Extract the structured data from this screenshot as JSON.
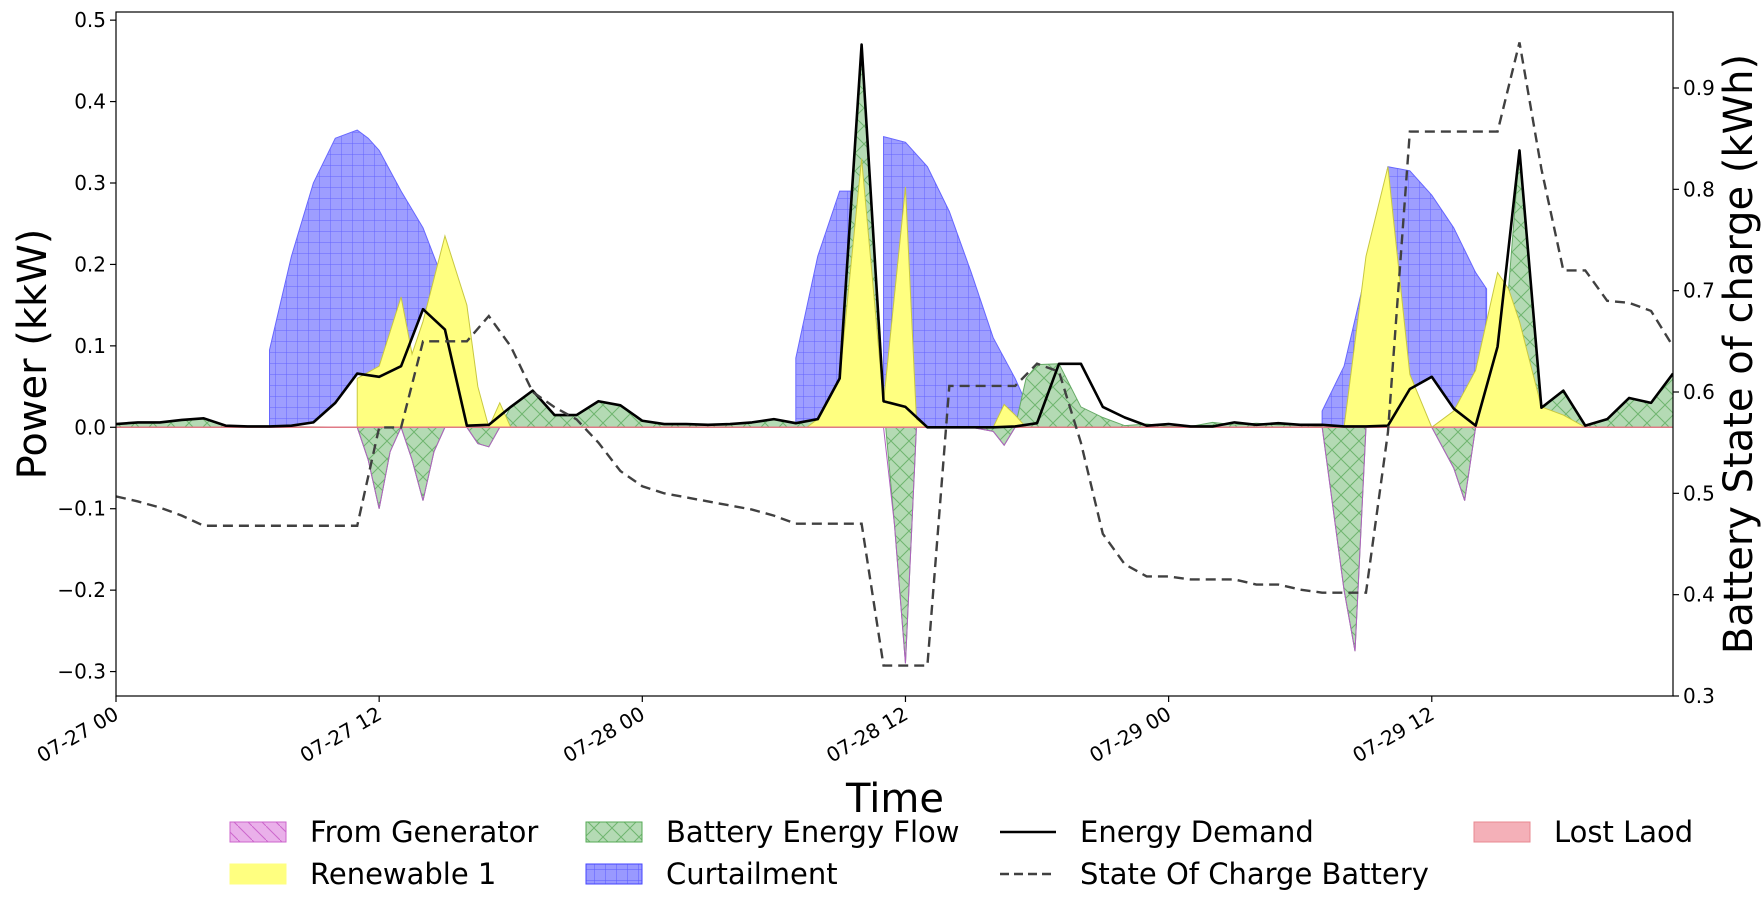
{
  "chart_data": {
    "type": "area",
    "xlabel": "Time",
    "ylabel": "Power (kkW)",
    "ylabel_right": "Battery State of charge (kWh)",
    "x_unit": "hour offset from 07-27 00:00",
    "xlim": [
      0,
      71
    ],
    "ylim": [
      -0.33,
      0.51
    ],
    "ylim_right": [
      0.3,
      0.975
    ],
    "x_ticks": [
      {
        "x": 0,
        "label": "07-27 00"
      },
      {
        "x": 12,
        "label": "07-27 12"
      },
      {
        "x": 24,
        "label": "07-28 00"
      },
      {
        "x": 36,
        "label": "07-28 12"
      },
      {
        "x": 48,
        "label": "07-29 00"
      },
      {
        "x": 60,
        "label": "07-29 12"
      }
    ],
    "y_ticks": [
      -0.3,
      -0.2,
      -0.1,
      0.0,
      0.1,
      0.2,
      0.3,
      0.4,
      0.5
    ],
    "y_tick_labels": [
      "−0.3",
      "−0.2",
      "−0.1",
      "0.0",
      "0.1",
      "0.2",
      "0.3",
      "0.4",
      "0.5"
    ],
    "y_ticks_right": [
      0.3,
      0.4,
      0.5,
      0.6,
      0.7,
      0.8,
      0.9
    ],
    "y_tick_labels_right": [
      "0.3",
      "0.4",
      "0.5",
      "0.6",
      "0.7",
      "0.8",
      "0.9"
    ],
    "legend_position": "bottom",
    "series": [
      {
        "name": "Curtailment",
        "style": "hatch-grid",
        "color": "#0000ff",
        "stacked_on": "Energy Demand",
        "x": [
          7,
          8,
          9,
          10,
          11,
          11.5,
          12,
          13,
          14,
          15,
          16,
          16.5
        ],
        "values": [
          0.095,
          0.21,
          0.3,
          0.355,
          0.365,
          0.355,
          0.34,
          0.29,
          0.245,
          0.175,
          0.07,
          0.02
        ],
        "x2": [
          31,
          32,
          33,
          33.5
        ],
        "values2": [
          0.085,
          0.21,
          0.29,
          0.29
        ],
        "x3": [
          35,
          36,
          37,
          38,
          39,
          40,
          41,
          41.5
        ],
        "values3": [
          0.357,
          0.35,
          0.32,
          0.265,
          0.19,
          0.11,
          0.06,
          0.03
        ],
        "x4": [
          55,
          56,
          57,
          58,
          59,
          60,
          61,
          62,
          62.5
        ],
        "values4": [
          0.02,
          0.075,
          0.19,
          0.32,
          0.315,
          0.285,
          0.245,
          0.19,
          0.17
        ]
      },
      {
        "name": "Renewable 1",
        "style": "fill",
        "color": "#ffff80",
        "x": [
          11,
          12,
          13,
          13.5,
          14,
          15,
          16,
          16.5,
          17,
          17.5,
          18,
          31.5,
          32,
          33,
          34,
          35,
          36,
          36.5,
          37,
          38,
          40,
          40.5,
          41,
          41.5,
          42,
          56,
          57,
          58,
          59,
          60,
          61,
          62,
          63,
          63.5,
          64,
          65,
          66,
          67,
          71
        ],
        "values": [
          0.06,
          0.075,
          0.16,
          0.09,
          0.13,
          0.235,
          0.15,
          0.05,
          0.0,
          0.03,
          0.0,
          0.0,
          0.01,
          0.06,
          0.33,
          0.03,
          0.295,
          0.01,
          0.0,
          0.0,
          0.0,
          0.028,
          0.015,
          0.0,
          0.0,
          0.0,
          0.21,
          0.32,
          0.065,
          0.0,
          0.02,
          0.07,
          0.19,
          0.17,
          0.13,
          0.025,
          0.015,
          0.0,
          0.0
        ]
      },
      {
        "name": "Battery Energy Flow",
        "style": "hatch-x",
        "color": "#66bb66",
        "x": [
          0,
          1,
          2,
          3,
          4,
          5,
          6,
          7,
          11,
          11.5,
          12,
          12.5,
          13,
          13.5,
          14,
          14.5,
          15,
          15.5,
          16,
          16.5,
          17,
          17.5,
          18,
          19,
          20,
          21,
          22,
          23,
          24,
          25,
          26,
          27,
          28,
          29,
          30,
          31,
          32,
          33,
          34,
          35,
          35.5,
          36,
          36.5,
          37,
          37.5,
          38,
          39,
          40,
          40.5,
          41,
          41.5,
          42,
          43,
          44,
          45,
          46,
          47,
          48,
          49,
          50,
          51,
          52,
          53,
          54,
          55,
          56,
          56.5,
          57,
          58,
          59,
          60,
          61,
          61.5,
          62,
          62.5,
          63,
          64,
          65,
          66,
          67,
          68,
          69,
          70,
          71
        ],
        "values": [
          0.004,
          0.006,
          0.006,
          0.009,
          0.011,
          0.002,
          0.001,
          0.001,
          0.0,
          -0.04,
          -0.1,
          -0.03,
          0.0,
          -0.04,
          -0.09,
          -0.03,
          0.0,
          0.0,
          0.0,
          -0.02,
          -0.024,
          0.0,
          0.025,
          0.045,
          0.015,
          0.015,
          0.032,
          0.027,
          0.008,
          0.004,
          0.004,
          0.003,
          0.004,
          0.006,
          0.01,
          0.005,
          0.01,
          0.06,
          0.47,
          0.03,
          -0.12,
          -0.29,
          0.0,
          0.0,
          0.0,
          0.0,
          0.0,
          -0.005,
          -0.022,
          0.0,
          0.06,
          0.077,
          0.078,
          0.025,
          0.012,
          0.002,
          0.004,
          0.001,
          0.001,
          0.006,
          0.003,
          0.005,
          0.003,
          0.003,
          0.001,
          -0.2,
          -0.275,
          0.0,
          0.0,
          0.0,
          0.0,
          -0.05,
          -0.09,
          0.0,
          0.0,
          0.0,
          0.34,
          0.022,
          0.045,
          0.002,
          0.01,
          0.036,
          0.03,
          0.066
        ]
      },
      {
        "name": "From Generator",
        "style": "hatch-diag",
        "color": "#dd88dd",
        "values_all": 0.0
      },
      {
        "name": "Energy Demand",
        "style": "line",
        "color": "#000000",
        "x": [
          0,
          1,
          2,
          3,
          4,
          5,
          6,
          7,
          8,
          9,
          10,
          11,
          12,
          13,
          14,
          15,
          16,
          17,
          18,
          19,
          20,
          21,
          22,
          23,
          24,
          25,
          26,
          27,
          28,
          29,
          30,
          31,
          32,
          33,
          34,
          35,
          36,
          37,
          38,
          39,
          40,
          41,
          42,
          43,
          44,
          45,
          46,
          47,
          48,
          49,
          50,
          51,
          52,
          53,
          54,
          55,
          56,
          57,
          58,
          59,
          60,
          61,
          62,
          63,
          64,
          65,
          66,
          67,
          68,
          69,
          70,
          71
        ],
        "values": [
          0.004,
          0.006,
          0.006,
          0.009,
          0.011,
          0.002,
          0.001,
          0.001,
          0.002,
          0.006,
          0.03,
          0.066,
          0.062,
          0.075,
          0.145,
          0.12,
          0.002,
          0.003,
          0.025,
          0.045,
          0.015,
          0.015,
          0.032,
          0.027,
          0.008,
          0.004,
          0.004,
          0.003,
          0.004,
          0.006,
          0.01,
          0.005,
          0.01,
          0.06,
          0.47,
          0.032,
          0.025,
          0.0,
          0.0,
          0.0,
          0.0,
          0.001,
          0.005,
          0.078,
          0.078,
          0.025,
          0.012,
          0.002,
          0.004,
          0.001,
          0.001,
          0.006,
          0.003,
          0.005,
          0.003,
          0.003,
          0.001,
          0.001,
          0.002,
          0.047,
          0.062,
          0.023,
          0.002,
          0.099,
          0.34,
          0.024,
          0.045,
          0.002,
          0.01,
          0.036,
          0.03,
          0.066
        ]
      },
      {
        "name": "State Of Charge Battery",
        "style": "dashed",
        "axis": "right",
        "color": "#404040",
        "x": [
          0,
          1,
          2,
          3,
          4,
          5,
          6,
          7,
          8,
          9,
          10,
          11,
          12,
          13,
          14,
          15,
          16,
          17,
          18,
          19,
          20,
          21,
          22,
          23,
          24,
          25,
          26,
          27,
          28,
          29,
          30,
          31,
          32,
          33,
          34,
          35,
          36,
          37,
          38,
          39,
          40,
          41,
          42,
          43,
          44,
          45,
          46,
          47,
          48,
          49,
          50,
          51,
          52,
          53,
          54,
          55,
          56,
          57,
          58,
          59,
          60,
          61,
          62,
          63,
          64,
          65,
          66,
          67,
          68,
          69,
          70,
          71
        ],
        "values": [
          0.497,
          0.492,
          0.486,
          0.478,
          0.468,
          0.468,
          0.468,
          0.468,
          0.468,
          0.468,
          0.468,
          0.468,
          0.565,
          0.565,
          0.65,
          0.65,
          0.65,
          0.675,
          0.645,
          0.6,
          0.585,
          0.573,
          0.55,
          0.522,
          0.507,
          0.5,
          0.496,
          0.492,
          0.488,
          0.484,
          0.478,
          0.47,
          0.47,
          0.47,
          0.47,
          0.33,
          0.33,
          0.33,
          0.606,
          0.606,
          0.606,
          0.606,
          0.628,
          0.62,
          0.55,
          0.46,
          0.43,
          0.418,
          0.418,
          0.415,
          0.415,
          0.415,
          0.41,
          0.41,
          0.405,
          0.402,
          0.402,
          0.402,
          0.56,
          0.857,
          0.857,
          0.857,
          0.857,
          0.857,
          0.945,
          0.82,
          0.72,
          0.72,
          0.69,
          0.688,
          0.68,
          0.645
        ]
      },
      {
        "name": "Lost Laod",
        "style": "fill",
        "color": "#f4a0a8",
        "values_all": 0.0
      }
    ]
  },
  "legend": [
    {
      "label": "From Generator",
      "kind": "hatch-diag",
      "fill": "#eab0ea",
      "stroke": "#cc66cc"
    },
    {
      "label": "Renewable 1",
      "kind": "fill",
      "fill": "#ffff80",
      "stroke": "#ffff80"
    },
    {
      "label": "Battery Energy Flow",
      "kind": "hatch-x",
      "fill": "#b4dab4",
      "stroke": "#55aa55"
    },
    {
      "label": "Curtailment",
      "kind": "hatch-grid",
      "fill": "#9999ff",
      "stroke": "#4444ff"
    },
    {
      "label": "Energy Demand",
      "kind": "line",
      "fill": "none",
      "stroke": "#000000"
    },
    {
      "label": "State Of Charge Battery",
      "kind": "dashed",
      "fill": "none",
      "stroke": "#404040"
    },
    {
      "label": "Lost Laod",
      "kind": "fill",
      "fill": "#f4b0b8",
      "stroke": "#e88890"
    }
  ]
}
